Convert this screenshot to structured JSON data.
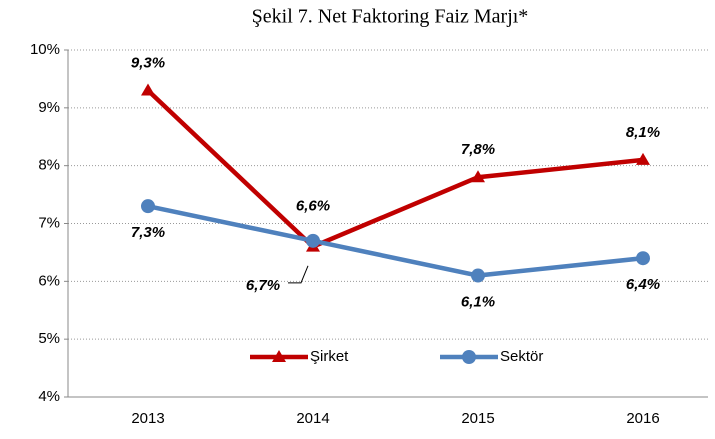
{
  "chart_data": {
    "type": "line",
    "title": "Şekil 7. Net Faktoring Faiz Marjı*",
    "categories": [
      "2013",
      "2014",
      "2015",
      "2016"
    ],
    "series": [
      {
        "name": "Şirket",
        "color": "#c00000",
        "marker": "triangle",
        "values": [
          9.3,
          6.6,
          7.8,
          8.1
        ],
        "value_labels": [
          "9,3%",
          "6,6%",
          "7,8%",
          "8,1%"
        ]
      },
      {
        "name": "Sektör",
        "color": "#4f81bd",
        "marker": "circle",
        "values": [
          7.3,
          6.7,
          6.1,
          6.4
        ],
        "value_labels": [
          "7,3%",
          "6,7%",
          "6,1%",
          "6,4%"
        ]
      }
    ],
    "ylim": [
      4,
      10
    ],
    "yticks": [
      {
        "value": 4,
        "label": "4%"
      },
      {
        "value": 5,
        "label": "5%"
      },
      {
        "value": 6,
        "label": "6%"
      },
      {
        "value": 7,
        "label": "7%"
      },
      {
        "value": 8,
        "label": "8%"
      },
      {
        "value": 9,
        "label": "9%"
      },
      {
        "value": 10,
        "label": "10%"
      }
    ],
    "grid": true
  }
}
